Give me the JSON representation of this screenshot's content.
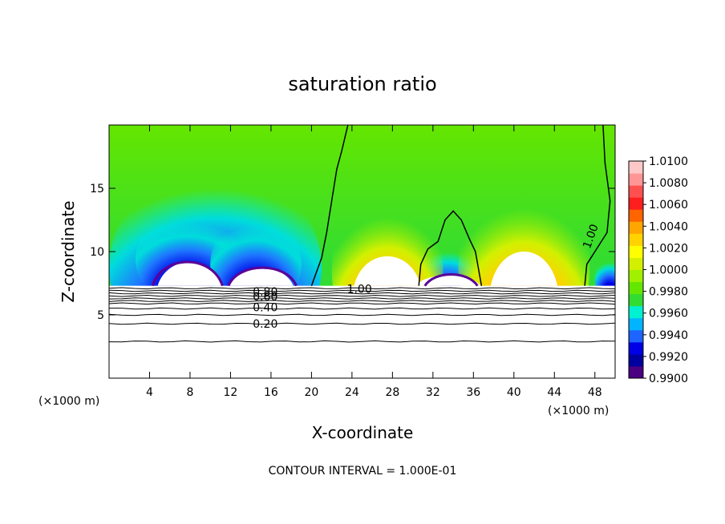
{
  "chart_data": {
    "type": "heatmap",
    "title": "saturation ratio",
    "xlabel": "X-coordinate",
    "ylabel": "Z-coordinate",
    "x_unit": "(×1000 m)",
    "y_unit": "(×1000 m)",
    "xlim": [
      0,
      50
    ],
    "ylim": [
      0,
      20
    ],
    "x_ticks": [
      4,
      8,
      12,
      16,
      20,
      24,
      28,
      32,
      36,
      40,
      44,
      48
    ],
    "y_ticks": [
      5,
      10,
      15
    ],
    "colorbar": {
      "min": 0.99,
      "max": 1.01,
      "labels": [
        "1.0100",
        "1.0080",
        "1.0060",
        "1.0040",
        "1.0020",
        "1.0000",
        "0.9980",
        "0.9960",
        "0.9940",
        "0.9920",
        "0.9900"
      ],
      "colors": [
        "#4b0082",
        "#0000a0",
        "#0000e6",
        "#1e64ff",
        "#00b4ff",
        "#00f0d2",
        "#32dc32",
        "#64e600",
        "#a0f000",
        "#d2f000",
        "#ffff00",
        "#ffd200",
        "#ffa500",
        "#ff6400",
        "#ff1e1e",
        "#ff5050",
        "#ff9696",
        "#ffc8c8"
      ]
    },
    "cloud_base_km": 7.3,
    "features": [
      {
        "kind": "dry",
        "x_center": 8,
        "z_top": 9.2
      },
      {
        "kind": "dry",
        "x_center": 15,
        "z_top": 8.6
      },
      {
        "kind": "supersaturated",
        "x_center": 27.5,
        "z_top": 9.8
      },
      {
        "kind": "dry",
        "x_center": 33.5,
        "z_top": 7.8
      },
      {
        "kind": "supersaturated",
        "x_center": 41,
        "z_top": 10.3
      }
    ],
    "contour_lines_km": [
      7.1,
      6.9,
      6.7,
      6.5,
      6.3,
      6.1,
      5.9,
      5.5,
      5.0,
      4.3,
      2.9
    ],
    "contour_labels": [
      {
        "text": "0.80",
        "x": 14.2,
        "z": 6.85
      },
      {
        "text": "0.60",
        "x": 14.2,
        "z": 6.45
      },
      {
        "text": "0.40",
        "x": 14.2,
        "z": 5.6
      },
      {
        "text": "0.20",
        "x": 14.2,
        "z": 4.3
      },
      {
        "text": "1.00",
        "x": 23.5,
        "z": 7.05
      },
      {
        "text": "1.00",
        "x": 47.5,
        "z": 10.5
      }
    ],
    "contour_interval_text": "CONTOUR INTERVAL = 1.000E-01"
  }
}
